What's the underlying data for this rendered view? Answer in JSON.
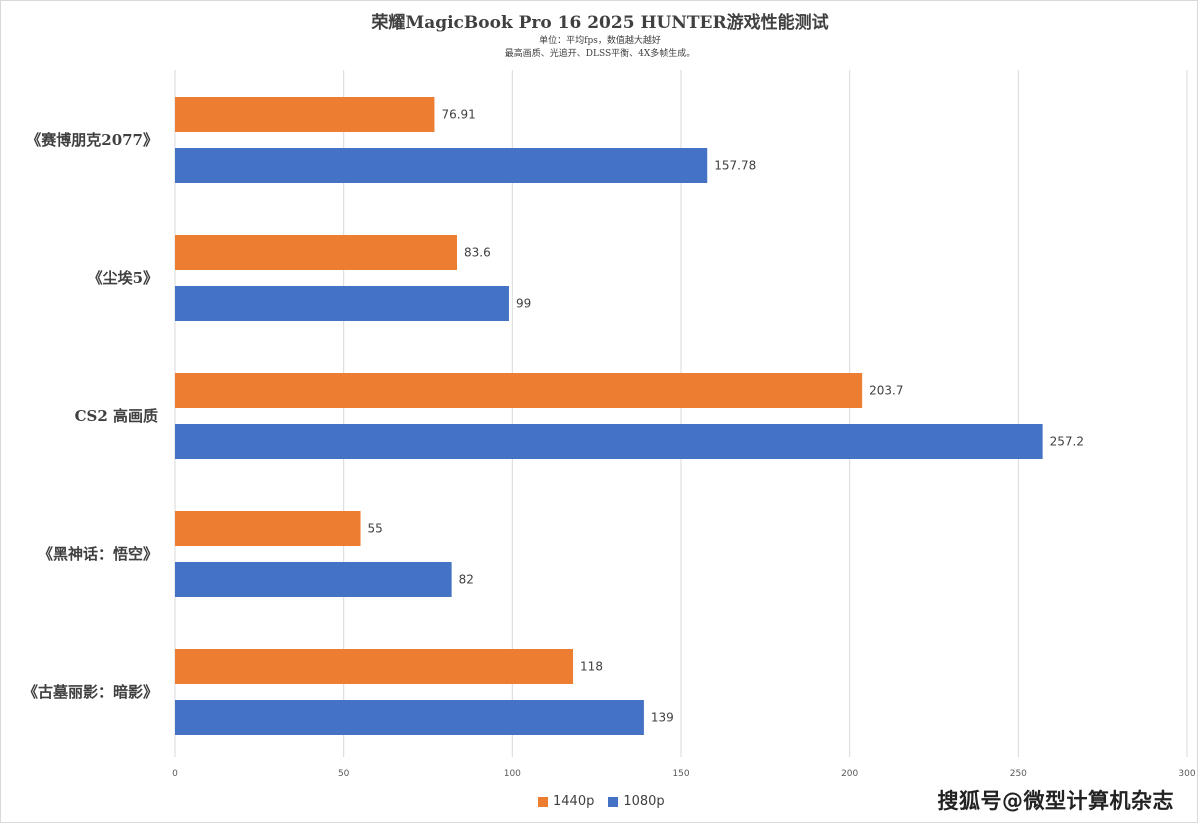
{
  "header": {
    "title": "荣耀MagicBook Pro 16 2025 HUNTER游戏性能测试",
    "subtitle_line1": "单位：平均fps，数值越大越好",
    "subtitle_line2": "最高画质、光追开、DLSS平衡、4X多帧生成。"
  },
  "watermark": "搜狐号@微型计算机杂志",
  "chart_data": {
    "type": "bar",
    "orientation": "horizontal",
    "categories": [
      "《赛博朋克2077》",
      "《尘埃5》",
      "CS2 高画质",
      "《黑神话：悟空》",
      "《古墓丽影：暗影》"
    ],
    "series": [
      {
        "name": "1440p",
        "color": "#ED7D31",
        "values": [
          76.91,
          83.6,
          203.7,
          55,
          118
        ]
      },
      {
        "name": "1080p",
        "color": "#4472C4",
        "values": [
          157.78,
          99,
          257.2,
          82,
          139
        ]
      }
    ],
    "x_ticks": [
      "0",
      "50",
      "100",
      "150",
      "200",
      "250",
      "300"
    ],
    "xlim": [
      0,
      300
    ],
    "grid": true,
    "legend_position": "bottom"
  }
}
